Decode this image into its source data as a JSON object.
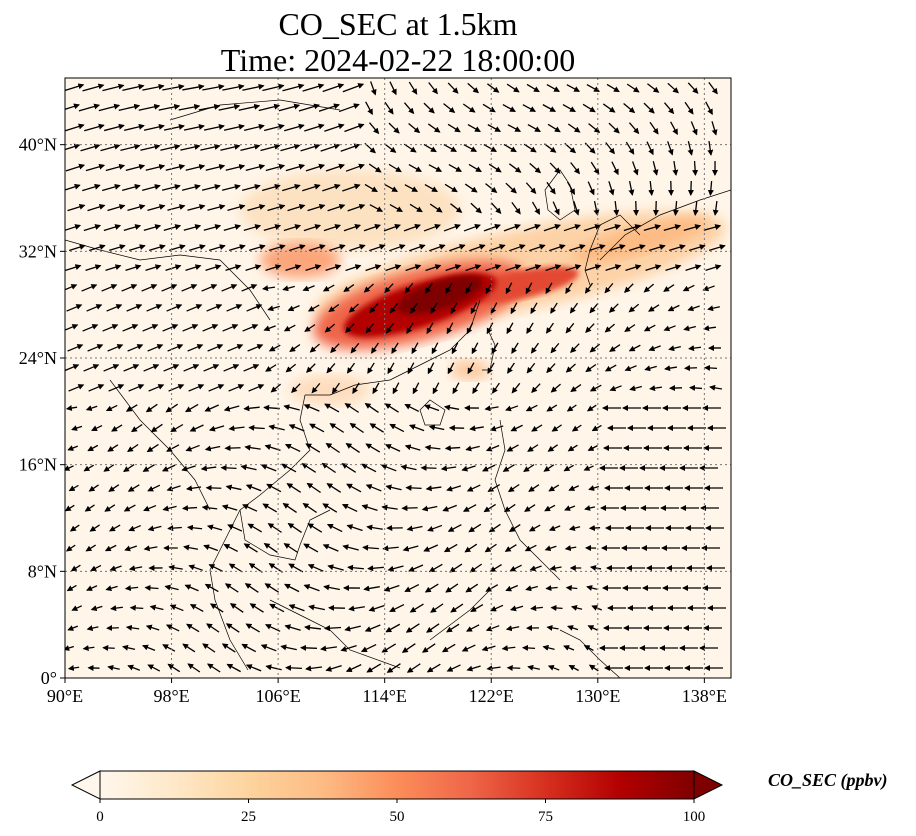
{
  "title": {
    "line1": "CO_SEC at 1.5km",
    "line2": "Time: 2024-02-22 18:00:00"
  },
  "map": {
    "lon_range": [
      90,
      140
    ],
    "lat_range": [
      0,
      45
    ],
    "x_ticks": [
      "90°E",
      "98°E",
      "106°E",
      "114°E",
      "122°E",
      "130°E",
      "138°E"
    ],
    "y_ticks": [
      "0°",
      "8°N",
      "16°N",
      "24°N",
      "32°N",
      "40°N"
    ],
    "gridlines": "dotted",
    "field": "CO_SEC concentration at 1.5 km",
    "overlay": "wind vectors (quiver arrows, black)",
    "colormap": "OrRd",
    "plume_core": "eastern China, roughly 110°E–125°E, 25°N–30°N"
  },
  "colorbar": {
    "label": "CO_SEC (ppbv)",
    "ticks": [
      "0",
      "25",
      "50",
      "75",
      "100"
    ],
    "range": [
      0,
      100
    ],
    "extend": "both",
    "colors": [
      "#fff7ec",
      "#fee8c8",
      "#fdd49e",
      "#fdbb84",
      "#fc8d59",
      "#ef6548",
      "#d7301f",
      "#b30000",
      "#7f0000"
    ]
  }
}
